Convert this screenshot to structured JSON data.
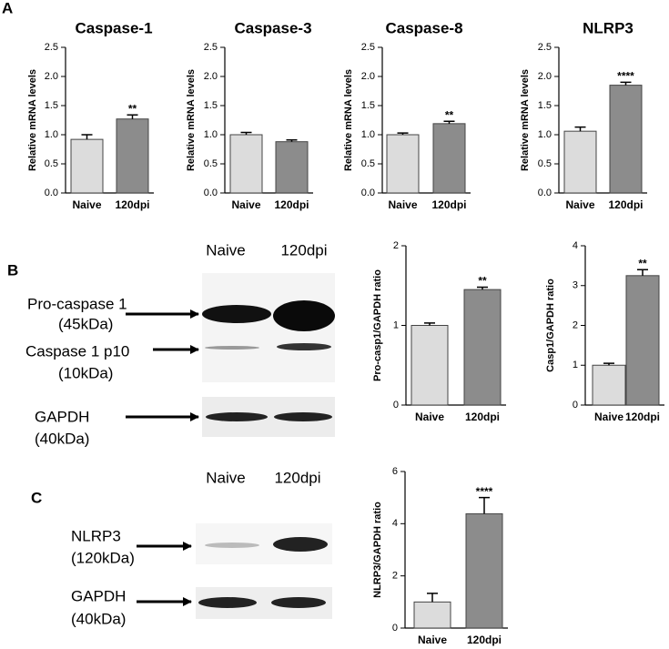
{
  "panels": [
    "A",
    "B",
    "C"
  ],
  "blot_b": {
    "columns": [
      "Naive",
      "120dpi"
    ],
    "rows": [
      {
        "name": "Pro-caspase 1",
        "size": "(45kDa)"
      },
      {
        "name": "Caspase 1 p10",
        "size": "(10kDa)"
      },
      {
        "name": "GAPDH",
        "size": "(40kDa)"
      }
    ]
  },
  "blot_c": {
    "columns": [
      "Naive",
      "120dpi"
    ],
    "rows": [
      {
        "name": "NLRP3",
        "size": "(120kDa)"
      },
      {
        "name": "GAPDH",
        "size": "(40kDa)"
      }
    ]
  },
  "chart_data": [
    {
      "type": "bar",
      "title": "Caspase-1",
      "y_label": "Relative mRNA levels",
      "categories": [
        "Naive",
        "120dpi"
      ],
      "values": [
        0.92,
        1.27
      ],
      "errors": [
        0.08,
        0.07
      ],
      "value_annotations": [
        null,
        "**"
      ],
      "colors": [
        "#dcdcdc",
        "#8c8c8c"
      ],
      "ylim": [
        0,
        2.5
      ],
      "yticks": [
        {
          "value": 0,
          "label": "0.0"
        },
        0.5,
        {
          "value": 1,
          "label": "1.0"
        },
        1.5,
        {
          "value": 2,
          "label": "2.0"
        },
        2.5
      ]
    },
    {
      "type": "bar",
      "title": "Caspase-3",
      "y_label": "Relative mRNA levels",
      "categories": [
        "Naive",
        "120dpi"
      ],
      "values": [
        1.0,
        0.88
      ],
      "errors": [
        0.04,
        0.03
      ],
      "colors": [
        "#dcdcdc",
        "#8c8c8c"
      ],
      "ylim": [
        0,
        2.5
      ],
      "yticks": [
        {
          "value": 0,
          "label": "0.0"
        },
        0.5,
        {
          "value": 1,
          "label": "1.0"
        },
        1.5,
        {
          "value": 2,
          "label": "2.0"
        },
        2.5
      ]
    },
    {
      "type": "bar",
      "title": "Caspase-8",
      "y_label": "Relative mRNA levels",
      "categories": [
        "Naive",
        "120dpi"
      ],
      "values": [
        1.0,
        1.19
      ],
      "errors": [
        0.03,
        0.04
      ],
      "value_annotations": [
        null,
        "**"
      ],
      "colors": [
        "#dcdcdc",
        "#8c8c8c"
      ],
      "ylim": [
        0,
        2.5
      ],
      "yticks": [
        {
          "value": 0,
          "label": "0.0"
        },
        0.5,
        {
          "value": 1,
          "label": "1.0"
        },
        1.5,
        {
          "value": 2,
          "label": "2.0"
        },
        2.5
      ]
    },
    {
      "type": "bar",
      "title": "NLRP3",
      "y_label": "Relative mRNA levels",
      "categories": [
        "Naive",
        "120dpi"
      ],
      "values": [
        1.06,
        1.85
      ],
      "errors": [
        0.07,
        0.05
      ],
      "value_annotations": [
        null,
        "****"
      ],
      "colors": [
        "#dcdcdc",
        "#8c8c8c"
      ],
      "ylim": [
        0,
        2.5
      ],
      "yticks": [
        {
          "value": 0,
          "label": "0.0"
        },
        0.5,
        {
          "value": 1,
          "label": "1.0"
        },
        1.5,
        {
          "value": 2,
          "label": "2.0"
        },
        2.5
      ]
    },
    {
      "type": "bar",
      "y_label": "Pro-casp1/GAPDH ratio",
      "categories": [
        "Naive",
        "120dpi"
      ],
      "values": [
        1.0,
        1.45
      ],
      "errors": [
        0.03,
        0.03
      ],
      "value_annotations": [
        null,
        "**"
      ],
      "colors": [
        "#dcdcdc",
        "#8c8c8c"
      ],
      "ylim": [
        0,
        2
      ],
      "yticks": [
        0,
        1,
        2
      ]
    },
    {
      "type": "bar",
      "y_label": "Casp1/GAPDH ratio",
      "categories": [
        "Naive",
        "120dpi"
      ],
      "values": [
        1.0,
        3.25
      ],
      "errors": [
        0.05,
        0.15
      ],
      "value_annotations": [
        null,
        "**"
      ],
      "colors": [
        "#dcdcdc",
        "#8c8c8c"
      ],
      "ylim": [
        0,
        4
      ],
      "yticks": [
        0,
        1,
        2,
        3,
        4
      ]
    },
    {
      "type": "bar",
      "y_label": "NLRP3/GAPDH ratio",
      "categories": [
        "Naive",
        "120dpi"
      ],
      "values": [
        1.0,
        4.38
      ],
      "errors": [
        0.33,
        0.62
      ],
      "value_annotations": [
        null,
        "****"
      ],
      "colors": [
        "#dcdcdc",
        "#8c8c8c"
      ],
      "ylim": [
        0,
        6
      ],
      "yticks": [
        0,
        2,
        4,
        6
      ]
    }
  ]
}
